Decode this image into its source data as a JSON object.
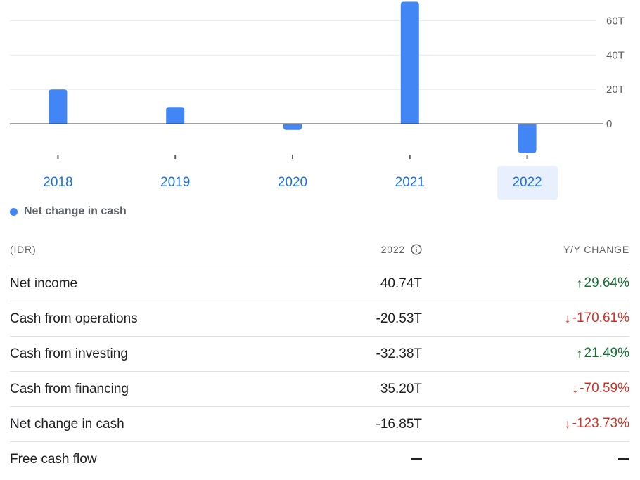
{
  "chart_data": {
    "type": "bar",
    "categories": [
      "2018",
      "2019",
      "2020",
      "2021",
      "2022"
    ],
    "series": [
      {
        "name": "Net change in cash",
        "values": [
          20.0,
          9.8,
          -3.5,
          71.0,
          -16.85
        ]
      }
    ],
    "y_ticks": [
      {
        "value": 60,
        "label": "60T"
      },
      {
        "value": 40,
        "label": "40T"
      },
      {
        "value": 20,
        "label": "20T"
      },
      {
        "value": 0,
        "label": "0"
      }
    ],
    "ylim": [
      -22,
      72
    ],
    "grid": true,
    "y_axis_position": "right",
    "selected_category": "2022",
    "bar_color": "#4285f4",
    "legend_placement": "bottom-left"
  },
  "legend": {
    "label": "Net change in cash",
    "color": "#4285f4"
  },
  "table": {
    "headers": {
      "label": "(IDR)",
      "value": "2022",
      "change": "Y/Y CHANGE"
    },
    "rows": [
      {
        "label": "Net income",
        "value": "40.74T",
        "change": "29.64%",
        "direction": "up"
      },
      {
        "label": "Cash from operations",
        "value": "-20.53T",
        "change": "-170.61%",
        "direction": "down"
      },
      {
        "label": "Cash from investing",
        "value": "-32.38T",
        "change": "21.49%",
        "direction": "up"
      },
      {
        "label": "Cash from financing",
        "value": "35.20T",
        "change": "-70.59%",
        "direction": "down"
      },
      {
        "label": "Net change in cash",
        "value": "-16.85T",
        "change": "-123.73%",
        "direction": "down"
      },
      {
        "label": "Free cash flow",
        "value": "",
        "change": "",
        "direction": "none"
      }
    ]
  },
  "colors": {
    "positive": "#137333",
    "negative": "#d93025",
    "link": "#1a73e8"
  }
}
